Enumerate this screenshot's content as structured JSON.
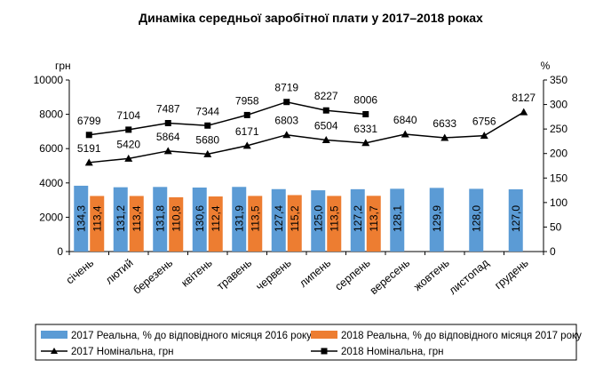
{
  "chart_data": {
    "type": "bar",
    "title": "Динаміка середньої заробітної плати у 2017–2018 роках",
    "left_axis_unit": "грн",
    "right_axis_unit": "%",
    "y_left": {
      "min": 0,
      "max": 10000,
      "step": 2000,
      "ticks": [
        "0",
        "2000",
        "4000",
        "6000",
        "8000",
        "10000"
      ]
    },
    "y_right": {
      "min": 0,
      "max": 350,
      "step": 50,
      "ticks": [
        "0",
        "50",
        "100",
        "150",
        "200",
        "250",
        "300",
        "350"
      ]
    },
    "categories": [
      "січень",
      "лютий",
      "березень",
      "квітень",
      "травень",
      "червень",
      "липень",
      "серпень",
      "вересень",
      "жовтень",
      "листопад",
      "грудень"
    ],
    "bar_series": [
      {
        "name": "2017 Реальна, % до відповідного місяця 2016 року",
        "axis": "right",
        "color": "#5B9BD5",
        "values": [
          134.3,
          131.2,
          131.8,
          130.6,
          131.9,
          127.4,
          125.0,
          127.2,
          128.1,
          129.9,
          128.0,
          127.0
        ],
        "labels": [
          "134,3",
          "131,2",
          "131,8",
          "130,6",
          "131,9",
          "127,4",
          "125,0",
          "127,2",
          "128,1",
          "129,9",
          "128,0",
          "127,0"
        ]
      },
      {
        "name": "2018 Реальна, % до відповідного місяця 2017 року",
        "axis": "right",
        "color": "#ED7D31",
        "values": [
          113.4,
          113.4,
          110.8,
          112.4,
          113.5,
          115.2,
          113.5,
          113.7,
          null,
          null,
          null,
          null
        ],
        "labels": [
          "113,4",
          "113,4",
          "110,8",
          "112,4",
          "113,5",
          "115,2",
          "113,5",
          "113,7",
          "",
          "",
          "",
          ""
        ]
      }
    ],
    "line_series": [
      {
        "name": "2017 Номінальна, грн",
        "axis": "left",
        "marker": "triangle",
        "values": [
          5191,
          5420,
          5864,
          5680,
          6171,
          6803,
          6504,
          6331,
          6840,
          6633,
          6756,
          8127
        ],
        "labels": [
          "5191",
          "5420",
          "5864",
          "5680",
          "6171",
          "6803",
          "6504",
          "6331",
          "6840",
          "6633",
          "6756",
          "8127"
        ]
      },
      {
        "name": "2018 Номінальна, грн",
        "axis": "left",
        "marker": "square",
        "values": [
          6799,
          7104,
          7487,
          7344,
          7958,
          8719,
          8227,
          8006,
          null,
          null,
          null,
          null
        ],
        "labels": [
          "6799",
          "7104",
          "7487",
          "7344",
          "7958",
          "8719",
          "8227",
          "8006",
          "",
          "",
          "",
          ""
        ]
      }
    ],
    "grid": false,
    "legend_position": "bottom"
  }
}
